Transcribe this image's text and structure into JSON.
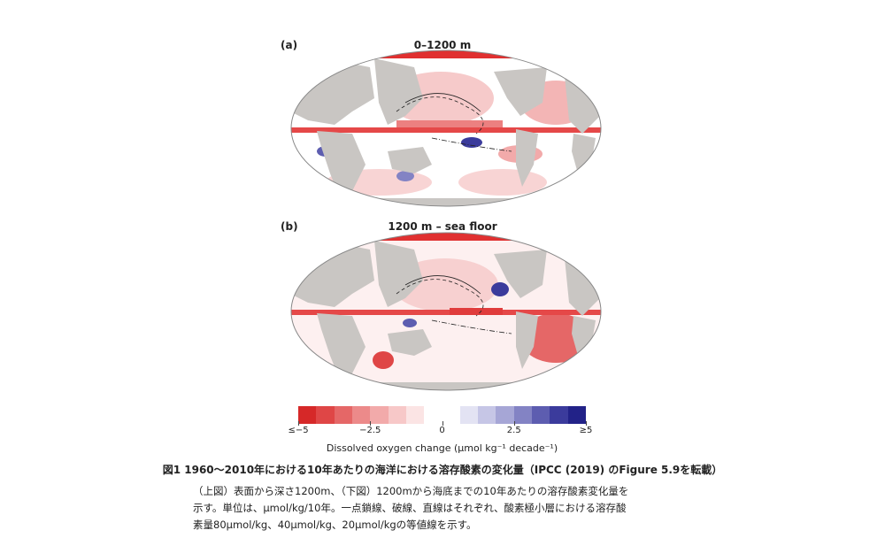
{
  "panels": [
    {
      "label": "(a)",
      "title": "0–1200 m"
    },
    {
      "label": "(b)",
      "title": "1200 m – sea floor"
    }
  ],
  "colorbar": {
    "colors": [
      "#d62828",
      "#df4646",
      "#e56767",
      "#ec8a8a",
      "#f2aaaa",
      "#f7c8c8",
      "#fbe4e4",
      "#ffffff",
      "#ffffff",
      "#e3e3f3",
      "#c6c6e6",
      "#a6a6d6",
      "#8383c4",
      "#5d5db0",
      "#3b3b9c",
      "#222288"
    ],
    "ticks": [
      "≤−5",
      "−2.5",
      "0",
      "2.5",
      "≥5"
    ],
    "label": "Dissolved oxygen change (μmol kg⁻¹ decade⁻¹)"
  },
  "caption": {
    "title": "図1 1960〜2010年における10年あたりの海洋における溶存酸素の変化量（IPCC (2019) のFigure 5.9を転載）",
    "lines": [
      "（上図）表面から深さ1200m、（下図）1200mから海底までの10年あたりの溶存酸素変化量を",
      "示す。単位は、μmol/kg/10年。一点鎖線、破線、直線はそれぞれ、酸素極小層における溶存酸",
      "素量80μmol/kg、40μmol/kg、20μmol/kgの等値線を示す。"
    ]
  }
}
